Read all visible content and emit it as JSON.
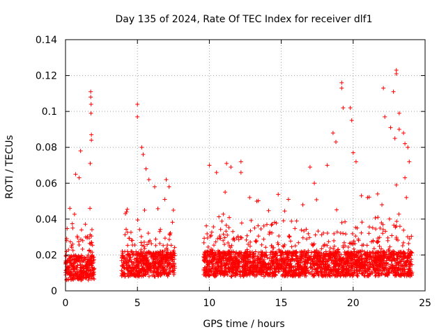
{
  "chart_data": {
    "type": "scatter",
    "title": "Day 135 of 2024, Rate Of TEC Index for receiver dlf1",
    "xlabel": "GPS time / hours",
    "ylabel": "ROTI / TECUs",
    "xlim": [
      0,
      25
    ],
    "ylim": [
      0,
      0.14
    ],
    "x_ticks": [
      0,
      5,
      10,
      15,
      20,
      25
    ],
    "x_tick_labels": [
      "0",
      "5",
      "10",
      "15",
      "20",
      "25"
    ],
    "y_ticks": [
      0,
      0.02,
      0.04,
      0.06,
      0.08,
      0.1,
      0.12,
      0.14
    ],
    "y_tick_labels": [
      "0",
      "0.02",
      "0.04",
      "0.06",
      "0.08",
      "0.1",
      "0.12",
      "0.14"
    ],
    "grid": true,
    "marker": "+",
    "marker_color": "#ff0000",
    "series": [
      {
        "name": "ROTI",
        "segments": [
          {
            "start": 0.0,
            "end": 2.0,
            "base": 0.013
          },
          {
            "start": 3.9,
            "end": 7.6,
            "base": 0.015
          },
          {
            "start": 9.6,
            "end": 24.1,
            "base": 0.015
          }
        ],
        "points": [
          [
            1.75,
            0.111
          ],
          [
            1.75,
            0.108
          ],
          [
            1.78,
            0.104
          ],
          [
            1.77,
            0.099
          ],
          [
            1.8,
            0.087
          ],
          [
            1.8,
            0.084
          ],
          [
            1.72,
            0.071
          ],
          [
            1.7,
            0.046
          ],
          [
            1.05,
            0.078
          ],
          [
            0.95,
            0.063
          ],
          [
            0.7,
            0.065
          ],
          [
            0.3,
            0.046
          ],
          [
            1.4,
            0.03
          ],
          [
            0.5,
            0.035
          ],
          [
            5.0,
            0.104
          ],
          [
            5.0,
            0.097
          ],
          [
            5.3,
            0.08
          ],
          [
            5.4,
            0.076
          ],
          [
            5.6,
            0.068
          ],
          [
            5.8,
            0.062
          ],
          [
            6.2,
            0.058
          ],
          [
            7.0,
            0.062
          ],
          [
            7.2,
            0.058
          ],
          [
            6.9,
            0.051
          ],
          [
            5.5,
            0.045
          ],
          [
            7.5,
            0.045
          ],
          [
            10.0,
            0.07
          ],
          [
            10.5,
            0.066
          ],
          [
            11.2,
            0.071
          ],
          [
            11.5,
            0.069
          ],
          [
            12.2,
            0.072
          ],
          [
            12.2,
            0.066
          ],
          [
            11.1,
            0.055
          ],
          [
            12.8,
            0.052
          ],
          [
            13.3,
            0.05
          ],
          [
            14.0,
            0.037
          ],
          [
            15.5,
            0.051
          ],
          [
            16.5,
            0.048
          ],
          [
            17.0,
            0.069
          ],
          [
            17.3,
            0.06
          ],
          [
            18.2,
            0.07
          ],
          [
            18.6,
            0.088
          ],
          [
            18.8,
            0.083
          ],
          [
            19.2,
            0.116
          ],
          [
            19.2,
            0.113
          ],
          [
            19.3,
            0.102
          ],
          [
            19.8,
            0.102
          ],
          [
            19.9,
            0.095
          ],
          [
            20.0,
            0.077
          ],
          [
            20.2,
            0.072
          ],
          [
            21.0,
            0.052
          ],
          [
            21.7,
            0.054
          ],
          [
            22.0,
            0.048
          ],
          [
            22.1,
            0.113
          ],
          [
            22.2,
            0.097
          ],
          [
            22.6,
            0.091
          ],
          [
            22.9,
            0.085
          ],
          [
            22.8,
            0.111
          ],
          [
            23.0,
            0.123
          ],
          [
            23.0,
            0.121
          ],
          [
            23.2,
            0.099
          ],
          [
            23.2,
            0.09
          ],
          [
            23.5,
            0.088
          ],
          [
            23.6,
            0.082
          ],
          [
            23.8,
            0.08
          ],
          [
            23.9,
            0.072
          ],
          [
            23.6,
            0.063
          ],
          [
            23.0,
            0.059
          ],
          [
            23.7,
            0.052
          ]
        ]
      }
    ]
  }
}
